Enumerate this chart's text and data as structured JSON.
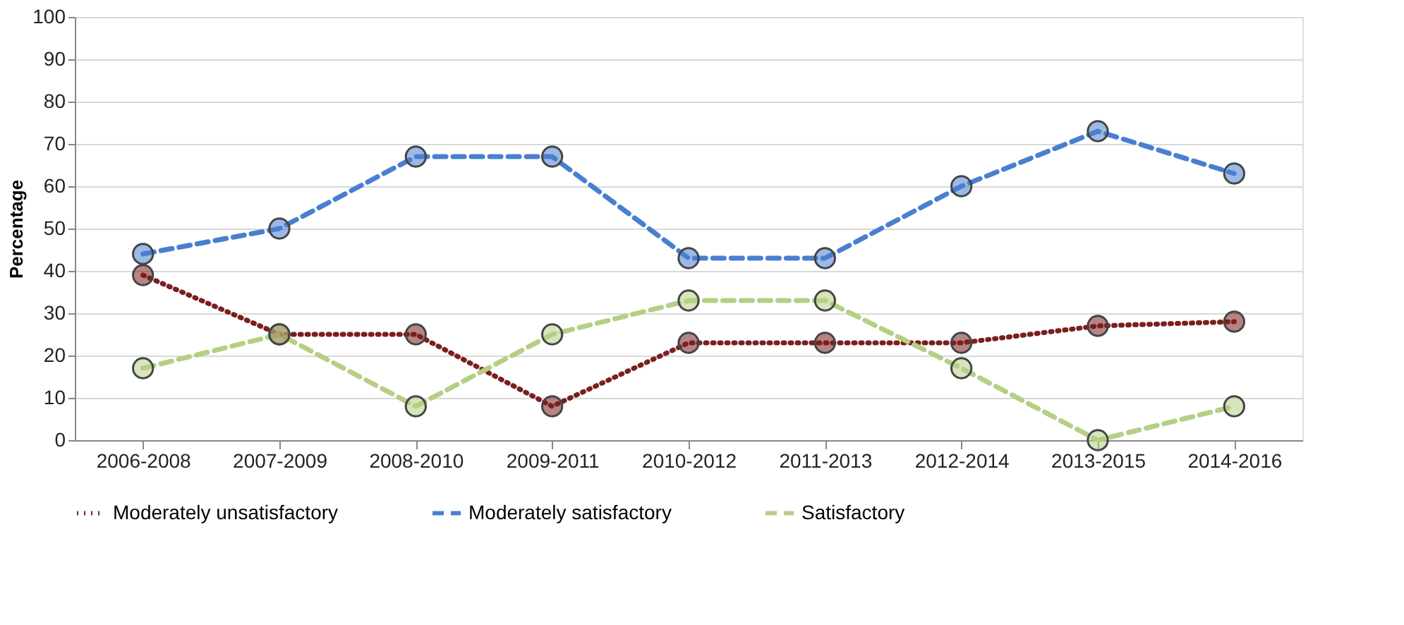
{
  "chart_data": {
    "type": "line",
    "ylabel": "Percentage",
    "categories": [
      "2006-2008",
      "2007-2009",
      "2008-2010",
      "2009-2011",
      "2010-2012",
      "2011-2013",
      "2012-2014",
      "2013-2015",
      "2014-2016"
    ],
    "series": [
      {
        "name": "Moderately unsatisfactory",
        "color": "#7a1f1f",
        "line_style": "dotted",
        "values": [
          39,
          25,
          25,
          8,
          23,
          23,
          23,
          27,
          28
        ]
      },
      {
        "name": "Moderately satisfactory",
        "color": "#4a7fd0",
        "line_style": "dashed",
        "values": [
          44,
          50,
          67,
          67,
          43,
          43,
          60,
          73,
          63
        ]
      },
      {
        "name": "Satisfactory",
        "color": "#b5cf85",
        "line_style": "dashed",
        "values": [
          17,
          25,
          8,
          25,
          33,
          33,
          17,
          0,
          8
        ]
      }
    ],
    "ylim": [
      0,
      100
    ],
    "yticks": [
      0,
      10,
      20,
      30,
      40,
      50,
      60,
      70,
      80,
      90,
      100
    ],
    "grid": "y",
    "legend": "bottom",
    "marker": "circle"
  }
}
